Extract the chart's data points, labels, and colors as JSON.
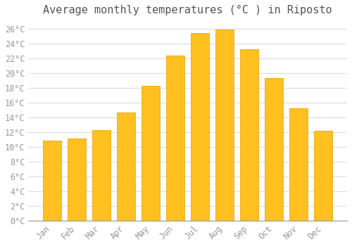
{
  "title": "Average monthly temperatures (°C ) in Riposto",
  "months": [
    "Jan",
    "Feb",
    "Mar",
    "Apr",
    "May",
    "Jun",
    "Jul",
    "Aug",
    "Sep",
    "Oct",
    "Nov",
    "Dec"
  ],
  "values": [
    10.8,
    11.1,
    12.3,
    14.6,
    18.3,
    22.3,
    25.4,
    25.9,
    23.2,
    19.3,
    15.2,
    12.2
  ],
  "bar_color_top": "#FFC020",
  "bar_color_bottom": "#FFB000",
  "bar_edge_color": "#E8A000",
  "background_color": "#FFFFFF",
  "grid_color": "#DDDDDD",
  "text_color": "#999999",
  "title_color": "#555555",
  "ylim": [
    0,
    27
  ],
  "ytick_max": 26,
  "ytick_step": 2,
  "title_fontsize": 11,
  "tick_fontsize": 8.5,
  "bar_width": 0.75
}
